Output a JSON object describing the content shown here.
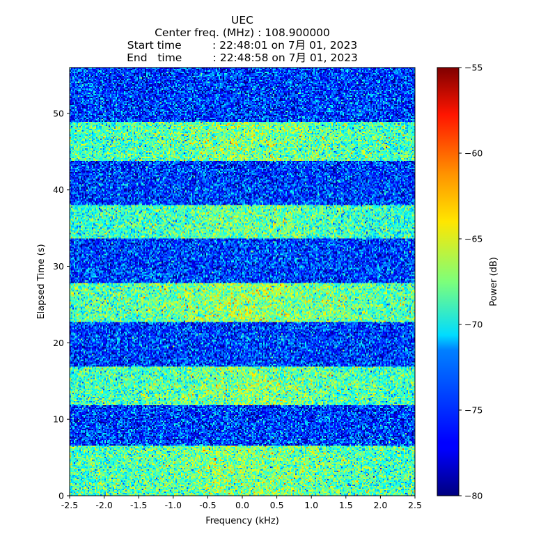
{
  "chart_data": {
    "type": "heatmap",
    "title_lines": [
      "UEC",
      "Center freq. (MHz) : 108.900000",
      "Start time         : 22:48:01 on 7月 01, 2023",
      "End   time         : 22:48:58 on 7月 01, 2023"
    ],
    "xlabel": "Frequency (kHz)",
    "ylabel": "Elapsed Time (s)",
    "xlim": [
      -2.5,
      2.5
    ],
    "ylim": [
      0,
      56
    ],
    "xticks": [
      -2.5,
      -2.0,
      -1.5,
      -1.0,
      -0.5,
      0.0,
      0.5,
      1.0,
      1.5,
      2.0,
      2.5
    ],
    "xtick_labels": [
      "-2.5",
      "-2.0",
      "-1.5",
      "-1.0",
      "-0.5",
      "0.0",
      "0.5",
      "1.0",
      "1.5",
      "2.0",
      "2.5"
    ],
    "yticks": [
      0,
      10,
      20,
      30,
      40,
      50
    ],
    "ytick_labels": [
      "0",
      "10",
      "20",
      "30",
      "40",
      "50"
    ],
    "colorbar": {
      "label": "Power (dB)",
      "range": [
        -80,
        -55
      ],
      "ticks": [
        -80,
        -75,
        -70,
        -65,
        -60,
        -55
      ],
      "tick_labels": [
        "−80",
        "−75",
        "−70",
        "−65",
        "−60",
        "−55"
      ],
      "colormap": "jet"
    },
    "bands": [
      {
        "start": 0.0,
        "end": 6.5,
        "level": "high",
        "mean_db": -68.5
      },
      {
        "start": 6.5,
        "end": 11.8,
        "level": "low",
        "mean_db": -75.5
      },
      {
        "start": 11.8,
        "end": 17.0,
        "level": "high",
        "mean_db": -68.5
      },
      {
        "start": 17.0,
        "end": 22.7,
        "level": "low",
        "mean_db": -75.5
      },
      {
        "start": 22.7,
        "end": 27.8,
        "level": "high",
        "mean_db": -68.0
      },
      {
        "start": 27.8,
        "end": 33.6,
        "level": "low",
        "mean_db": -75.5
      },
      {
        "start": 33.6,
        "end": 38.0,
        "level": "high",
        "mean_db": -69.0
      },
      {
        "start": 38.0,
        "end": 43.8,
        "level": "low",
        "mean_db": -75.5
      },
      {
        "start": 43.8,
        "end": 49.0,
        "level": "high",
        "mean_db": -68.5
      },
      {
        "start": 49.0,
        "end": 56.0,
        "level": "low",
        "mean_db": -75.5
      }
    ]
  }
}
